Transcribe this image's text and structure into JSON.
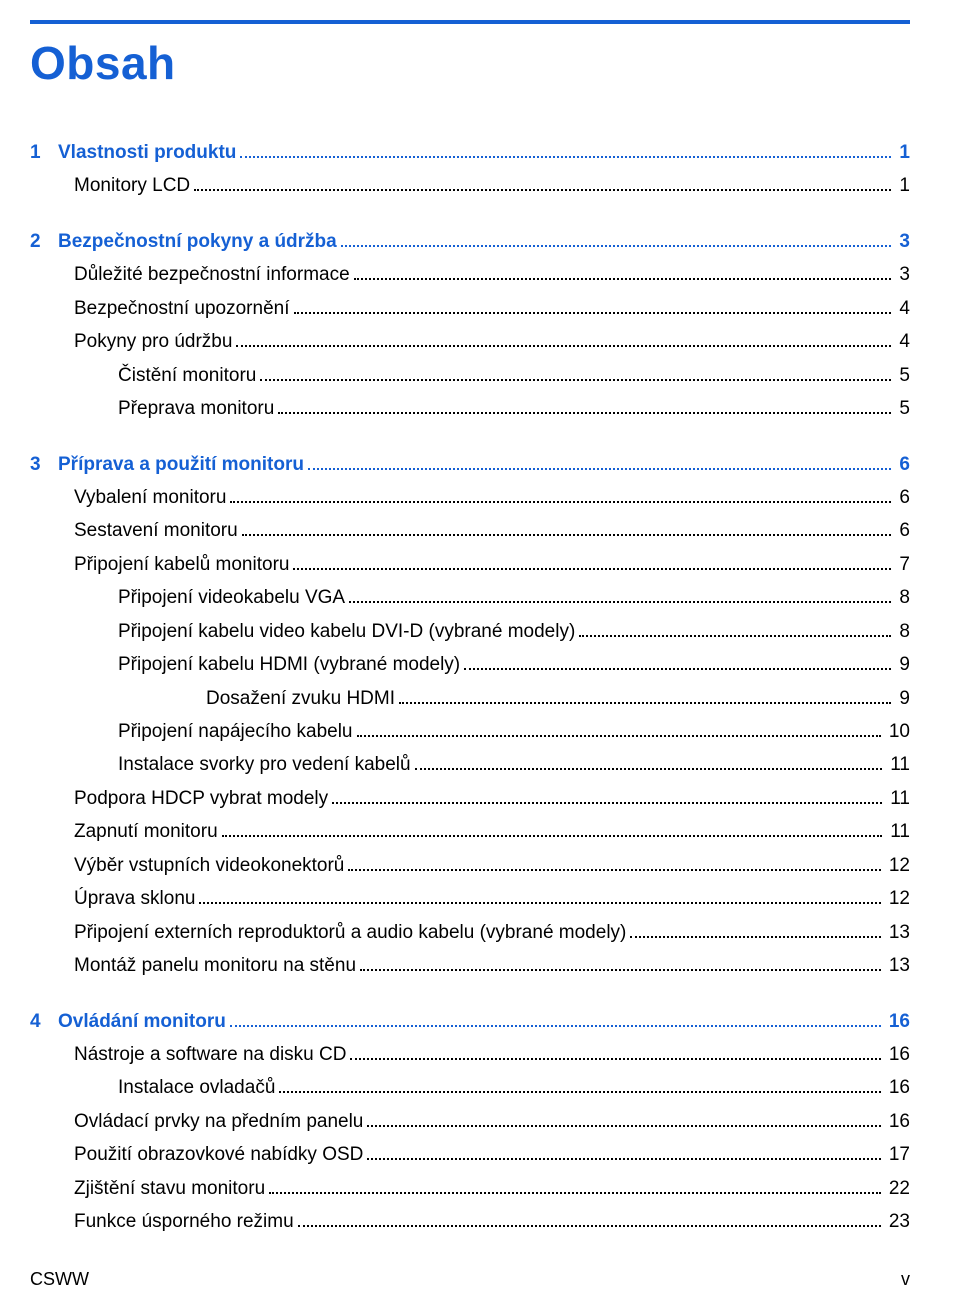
{
  "title": "Obsah",
  "colors": {
    "accent": "#1560d4",
    "text": "#000000",
    "bg": "#ffffff"
  },
  "typography": {
    "title_size_pt": 34,
    "row_size_pt": 14,
    "family": "Futura / Century Gothic style sans-serif"
  },
  "toc": [
    {
      "type": "chapter",
      "num": "1",
      "label": "Vlastnosti produktu",
      "page": "1"
    },
    {
      "type": "entry",
      "level": 1,
      "label": "Monitory LCD",
      "page": "1"
    },
    {
      "type": "chapter",
      "num": "2",
      "label": "Bezpečnostní pokyny a údržba",
      "page": "3"
    },
    {
      "type": "entry",
      "level": 1,
      "label": "Důležité bezpečnostní informace",
      "page": "3"
    },
    {
      "type": "entry",
      "level": 1,
      "label": "Bezpečnostní upozornění",
      "page": "4"
    },
    {
      "type": "entry",
      "level": 1,
      "label": "Pokyny pro údržbu",
      "page": "4"
    },
    {
      "type": "entry",
      "level": 2,
      "label": "Čistění monitoru",
      "page": "5"
    },
    {
      "type": "entry",
      "level": 2,
      "label": "Přeprava monitoru",
      "page": "5"
    },
    {
      "type": "chapter",
      "num": "3",
      "label": "Příprava a použití monitoru",
      "page": "6"
    },
    {
      "type": "entry",
      "level": 1,
      "label": "Vybalení monitoru",
      "page": "6"
    },
    {
      "type": "entry",
      "level": 1,
      "label": "Sestavení monitoru",
      "page": "6"
    },
    {
      "type": "entry",
      "level": 1,
      "label": "Připojení kabelů monitoru",
      "page": "7"
    },
    {
      "type": "entry",
      "level": 2,
      "label": "Připojení videokabelu VGA",
      "page": "8"
    },
    {
      "type": "entry",
      "level": 2,
      "label": "Připojení kabelu video kabelu DVI-D (vybrané modely)",
      "page": "8"
    },
    {
      "type": "entry",
      "level": 2,
      "label": "Připojení kabelu HDMI (vybrané modely)",
      "page": "9"
    },
    {
      "type": "entry",
      "level": 3,
      "label": "Dosažení zvuku HDMI",
      "page": "9"
    },
    {
      "type": "entry",
      "level": 2,
      "label": "Připojení napájecího kabelu",
      "page": "10"
    },
    {
      "type": "entry",
      "level": 2,
      "label": "Instalace svorky pro vedení kabelů",
      "page": "11"
    },
    {
      "type": "entry",
      "level": 1,
      "label": "Podpora HDCP vybrat modely",
      "page": "11"
    },
    {
      "type": "entry",
      "level": 1,
      "label": "Zapnutí monitoru",
      "page": "11"
    },
    {
      "type": "entry",
      "level": 1,
      "label": "Výběr vstupních videokonektorů",
      "page": "12"
    },
    {
      "type": "entry",
      "level": 1,
      "label": "Úprava sklonu",
      "page": "12"
    },
    {
      "type": "entry",
      "level": 1,
      "label": "Připojení externích reproduktorů a audio kabelu (vybrané modely)",
      "page": "13"
    },
    {
      "type": "entry",
      "level": 1,
      "label": "Montáž panelu monitoru na stěnu",
      "page": "13"
    },
    {
      "type": "chapter",
      "num": "4",
      "label": "Ovládání monitoru",
      "page": "16"
    },
    {
      "type": "entry",
      "level": 1,
      "label": "Nástroje a software na disku CD",
      "page": "16"
    },
    {
      "type": "entry",
      "level": 2,
      "label": "Instalace ovladačů",
      "page": "16"
    },
    {
      "type": "entry",
      "level": 1,
      "label": "Ovládací prvky na předním panelu",
      "page": "16"
    },
    {
      "type": "entry",
      "level": 1,
      "label": "Použití obrazovkové nabídky OSD",
      "page": "17"
    },
    {
      "type": "entry",
      "level": 1,
      "label": "Zjištění stavu monitoru",
      "page": "22"
    },
    {
      "type": "entry",
      "level": 1,
      "label": "Funkce úsporného režimu",
      "page": "23"
    }
  ],
  "footer": {
    "left": "CSWW",
    "right": "v"
  }
}
